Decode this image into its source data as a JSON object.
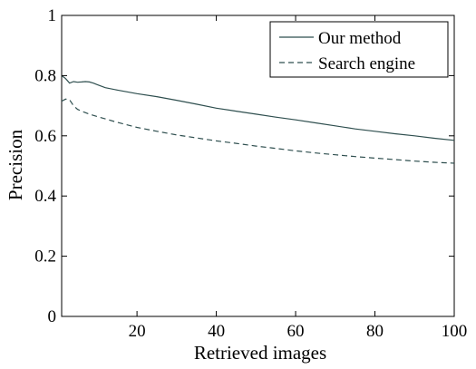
{
  "chart_data": {
    "type": "line",
    "title": "",
    "xlabel": "Retrieved images",
    "ylabel": "Precision",
    "xlim": [
      1,
      100
    ],
    "ylim": [
      0,
      1
    ],
    "x_ticks": [
      20,
      40,
      60,
      80,
      100
    ],
    "x_tick_labels": [
      "20",
      "40",
      "60",
      "80",
      "100"
    ],
    "y_ticks": [
      0,
      0.2,
      0.4,
      0.6,
      0.8,
      1
    ],
    "y_tick_labels": [
      "0",
      "0.2",
      "0.4",
      "0.6",
      "0.8",
      "1"
    ],
    "grid": false,
    "legend_position": "top-right",
    "series": [
      {
        "name": "Our method",
        "style": "solid",
        "color": "#2f4f4f",
        "x": [
          1,
          2,
          3,
          4,
          5,
          6,
          7,
          8,
          9,
          10,
          12,
          15,
          20,
          25,
          30,
          35,
          40,
          45,
          50,
          55,
          60,
          65,
          70,
          75,
          80,
          85,
          90,
          95,
          100
        ],
        "y": [
          0.8,
          0.79,
          0.775,
          0.78,
          0.778,
          0.779,
          0.78,
          0.779,
          0.775,
          0.77,
          0.76,
          0.752,
          0.74,
          0.73,
          0.718,
          0.705,
          0.692,
          0.682,
          0.672,
          0.662,
          0.653,
          0.643,
          0.633,
          0.623,
          0.615,
          0.607,
          0.6,
          0.592,
          0.585
        ]
      },
      {
        "name": "Search engine",
        "style": "dashed",
        "color": "#2f4f4f",
        "x": [
          1,
          2,
          3,
          4,
          5,
          6,
          8,
          10,
          15,
          20,
          25,
          30,
          35,
          40,
          45,
          50,
          55,
          60,
          65,
          70,
          75,
          80,
          85,
          90,
          95,
          100
        ],
        "y": [
          0.715,
          0.722,
          0.72,
          0.7,
          0.688,
          0.682,
          0.672,
          0.664,
          0.645,
          0.628,
          0.615,
          0.603,
          0.593,
          0.583,
          0.575,
          0.566,
          0.558,
          0.55,
          0.543,
          0.537,
          0.531,
          0.526,
          0.521,
          0.516,
          0.512,
          0.509
        ]
      }
    ]
  }
}
